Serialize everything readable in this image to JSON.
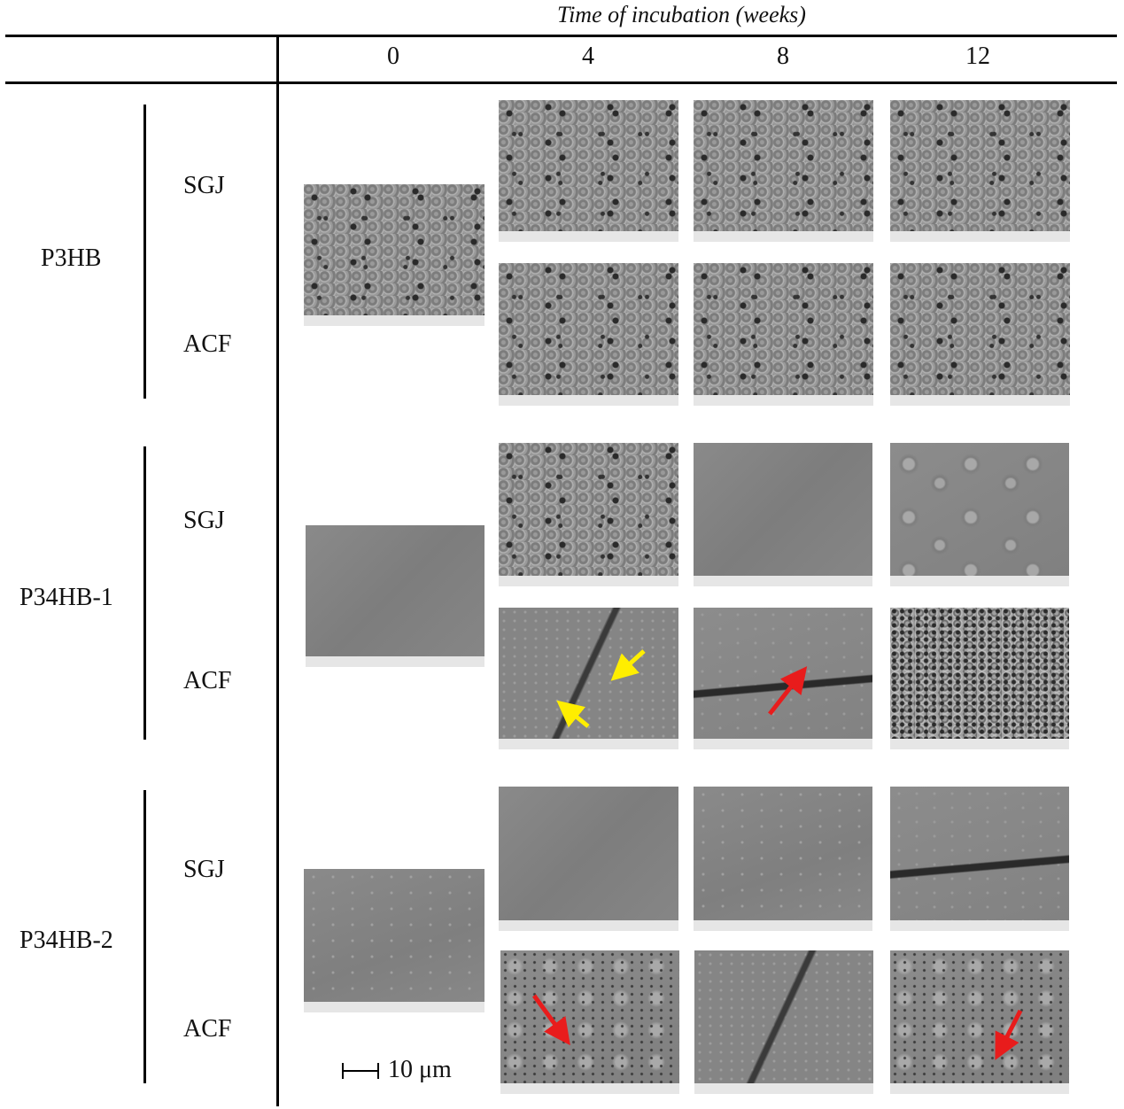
{
  "header": {
    "title": "Time of incubation (weeks)",
    "columns": [
      "0",
      "4",
      "8",
      "12"
    ]
  },
  "groups": [
    {
      "name": "P3HB",
      "rows": [
        "SGJ",
        "ACF"
      ]
    },
    {
      "name": "P34HB-1",
      "rows": [
        "SGJ",
        "ACF"
      ]
    },
    {
      "name": "P34HB-2",
      "rows": [
        "SGJ",
        "ACF"
      ]
    }
  ],
  "scale_bar": {
    "label": "10 μm"
  },
  "arrow_colors": {
    "yellow": "#ffee00",
    "red": "#e81c1c"
  }
}
